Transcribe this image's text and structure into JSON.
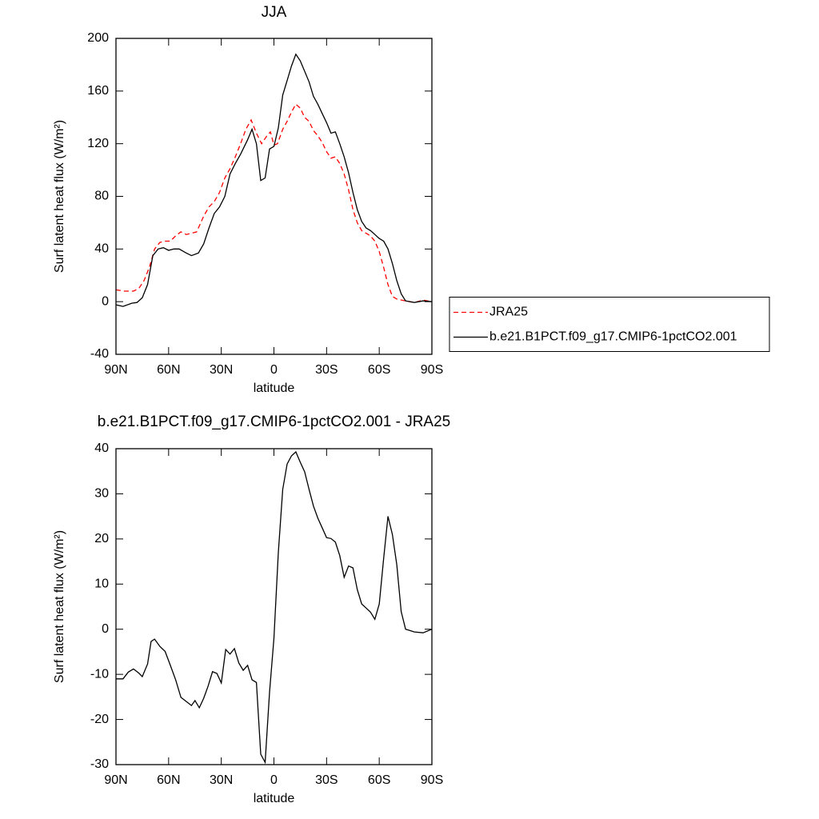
{
  "chart_data": [
    {
      "type": "line",
      "title": "JJA",
      "xlabel": "latitude",
      "ylabel": "Surf latent heat flux (W/m²)",
      "xlim": [
        90,
        -90
      ],
      "xticks": [
        {
          "value": 90,
          "label": "90N"
        },
        {
          "value": 60,
          "label": "60N"
        },
        {
          "value": 30,
          "label": "30N"
        },
        0,
        {
          "value": -30,
          "label": "30S"
        },
        {
          "value": -60,
          "label": "60S"
        },
        {
          "value": -90,
          "label": "90S"
        }
      ],
      "ylim": [
        -40,
        200
      ],
      "yticks": [
        -40,
        0,
        40,
        80,
        120,
        160,
        200
      ],
      "legend": "right",
      "series": [
        {
          "name": "JRA25",
          "color": "#ff0000",
          "dash": true,
          "x": [
            90,
            85,
            80,
            77,
            74,
            71,
            68,
            65,
            62,
            59,
            56,
            53,
            50,
            47,
            44,
            40,
            37,
            34,
            31,
            28,
            25,
            22,
            19,
            16,
            13,
            10,
            7,
            4,
            2,
            0,
            -2,
            -5,
            -7.5,
            -10,
            -12.5,
            -15,
            -17.5,
            -20,
            -22.5,
            -25,
            -27.5,
            -30,
            -32.5,
            -35,
            -37.5,
            -40,
            -42.5,
            -45,
            -47.5,
            -50,
            -52.5,
            -55,
            -57.5,
            -60,
            -62.5,
            -65,
            -67.5,
            -70,
            -75,
            -80,
            -85,
            -90
          ],
          "values": [
            9,
            8,
            8,
            10,
            16,
            26,
            40,
            45,
            46,
            46,
            50,
            53,
            51,
            52,
            53,
            65,
            72,
            76,
            83,
            94,
            101,
            110,
            120,
            131,
            138,
            128,
            120,
            126,
            129,
            119,
            120,
            131,
            137,
            144,
            150,
            147,
            140,
            137,
            130,
            126,
            121,
            114,
            109,
            110,
            105,
            97,
            85,
            70,
            60,
            54,
            52,
            50,
            46,
            38,
            26,
            13,
            4,
            2,
            0.6,
            -0.6,
            1.2,
            0
          ]
        },
        {
          "name": "b.e21.B1PCT.f09_g17.CMIP6-1pctCO2.001",
          "color": "#000000",
          "dash": false,
          "x": [
            90,
            86,
            81,
            78,
            75,
            72,
            69,
            66,
            63,
            60,
            57,
            54,
            50,
            47,
            43,
            40,
            37,
            34,
            31,
            28,
            25,
            22,
            19,
            15,
            12.5,
            10,
            7.5,
            5,
            2.5,
            0,
            -2.5,
            -5,
            -7.5,
            -10,
            -12.5,
            -15,
            -17.5,
            -20,
            -22.5,
            -25,
            -27.5,
            -30,
            -32.5,
            -35,
            -37.5,
            -40,
            -42.5,
            -45,
            -47.5,
            -50,
            -52.5,
            -55,
            -57.5,
            -60,
            -62.5,
            -65,
            -67.5,
            -70,
            -72.5,
            -75,
            -80,
            -85,
            -90
          ],
          "values": [
            -2.4,
            -3.6,
            -1.2,
            -0.6,
            3,
            13,
            35,
            40,
            41,
            39,
            40,
            40,
            37,
            35,
            37,
            44,
            56,
            67,
            72,
            80,
            97,
            105,
            112,
            123,
            131,
            120,
            92,
            94,
            116,
            118,
            132,
            157,
            168,
            179,
            188,
            183,
            175,
            167,
            156,
            150,
            143,
            136,
            128,
            129,
            120,
            110,
            98,
            83,
            70,
            61,
            56,
            54,
            51,
            48,
            46,
            40,
            29,
            16,
            6,
            0.6,
            -0.6,
            0.6,
            0
          ]
        }
      ]
    },
    {
      "type": "line",
      "title": "b.e21.B1PCT.f09_g17.CMIP6-1pctCO2.001 - JRA25",
      "xlabel": "latitude",
      "ylabel": "Surf latent heat flux (W/m²)",
      "xlim": [
        90,
        -90
      ],
      "xticks": [
        {
          "value": 90,
          "label": "90N"
        },
        {
          "value": 60,
          "label": "60N"
        },
        {
          "value": 30,
          "label": "30N"
        },
        0,
        {
          "value": -30,
          "label": "30S"
        },
        {
          "value": -60,
          "label": "60S"
        },
        {
          "value": -90,
          "label": "90S"
        }
      ],
      "ylim": [
        -30,
        40
      ],
      "yticks": [
        -30,
        -20,
        -10,
        0,
        10,
        20,
        30,
        40
      ],
      "series": [
        {
          "color": "#000000",
          "dash": false,
          "x": [
            90,
            86,
            83,
            80,
            77,
            75,
            72,
            70,
            68,
            65,
            62,
            59,
            56,
            53,
            50,
            47,
            45,
            42.5,
            40,
            37.5,
            35,
            32.5,
            30,
            27.5,
            25,
            22.5,
            20,
            17.5,
            15,
            12.5,
            10,
            7.5,
            5,
            2.5,
            0,
            -2.5,
            -5,
            -7.5,
            -10,
            -12.5,
            -15,
            -17.5,
            -20,
            -22.5,
            -25,
            -27.5,
            -30,
            -32.5,
            -35,
            -37.5,
            -40,
            -42.5,
            -45,
            -47.5,
            -50,
            -52.5,
            -55,
            -57.5,
            -60,
            -62.5,
            -65,
            -67.5,
            -70,
            -72.5,
            -75,
            -80,
            -85,
            -90
          ],
          "values": [
            -11,
            -11,
            -9.5,
            -8.8,
            -9.7,
            -10.5,
            -7.7,
            -2.7,
            -2.2,
            -3.8,
            -4.9,
            -8,
            -11.2,
            -15.1,
            -16,
            -16.9,
            -15.8,
            -17.4,
            -15.3,
            -12.6,
            -9.4,
            -9.8,
            -11.9,
            -4.5,
            -5.5,
            -4.3,
            -7.5,
            -9.1,
            -8,
            -11.2,
            -11.8,
            -27.7,
            -29.5,
            -14,
            -2,
            17,
            31,
            36.6,
            38.4,
            39.3,
            37,
            34.9,
            31,
            27.3,
            24.6,
            22.5,
            20.3,
            20.1,
            19.3,
            16.3,
            11.5,
            14,
            13.6,
            8.8,
            5.6,
            4.7,
            3.8,
            2.2,
            5.6,
            15.7,
            25,
            21,
            14.3,
            3.9,
            0,
            -0.6,
            -0.8,
            0
          ]
        }
      ]
    }
  ]
}
